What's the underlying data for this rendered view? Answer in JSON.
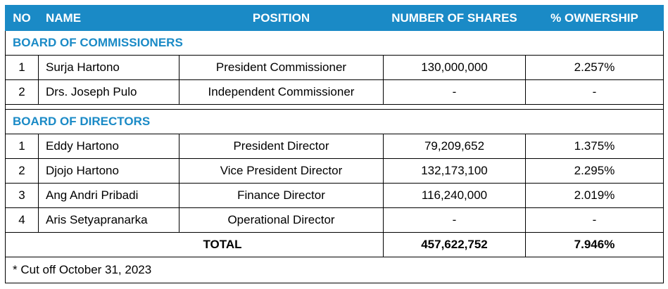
{
  "header": {
    "no": "NO",
    "name": "NAME",
    "position": "POSITION",
    "shares": "NUMBER OF SHARES",
    "ownership": "% OWNERSHIP"
  },
  "commissioners": {
    "title": "BOARD OF COMMISSIONERS",
    "rows": [
      {
        "no": "1",
        "name": "Surja Hartono",
        "position": "President Commissioner",
        "shares": "130,000,000",
        "ownership": "2.257%"
      },
      {
        "no": "2",
        "name": "Drs. Joseph Pulo",
        "position": "Independent Commissioner",
        "shares": "-",
        "ownership": "-"
      }
    ]
  },
  "directors": {
    "title": "BOARD OF DIRECTORS",
    "rows": [
      {
        "no": "1",
        "name": "Eddy Hartono",
        "position": "President Director",
        "shares": "79,209,652",
        "ownership": "1.375%"
      },
      {
        "no": "2",
        "name": "Djojo Hartono",
        "position": "Vice President Director",
        "shares": "132,173,100",
        "ownership": "2.295%"
      },
      {
        "no": "3",
        "name": "Ang Andri Pribadi",
        "position": "Finance Director",
        "shares": "116,240,000",
        "ownership": "2.019%"
      },
      {
        "no": "4",
        "name": "Aris Setyapranarka",
        "position": "Operational Director",
        "shares": "-",
        "ownership": "-"
      }
    ]
  },
  "total": {
    "label": "TOTAL",
    "shares": "457,622,752",
    "ownership": "7.946%"
  },
  "footnote": "* Cut off October 31, 2023"
}
